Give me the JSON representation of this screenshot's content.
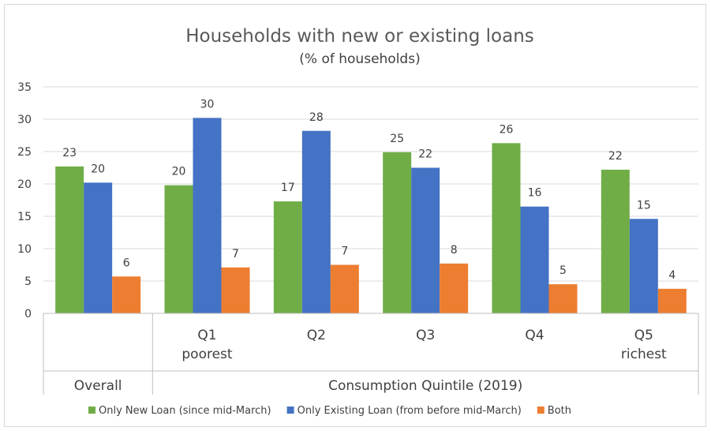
{
  "chart_data": {
    "type": "bar",
    "title": "Households with new or existing loans",
    "subtitle": "(% of households)",
    "ylim": [
      0,
      35
    ],
    "yticks": [
      0,
      5,
      10,
      15,
      20,
      25,
      30,
      35
    ],
    "grid": true,
    "legend_position": "bottom",
    "categories": [
      {
        "line1": "Overall",
        "line2": ""
      },
      {
        "line1": "Q1",
        "line2": "poorest"
      },
      {
        "line1": "Q2",
        "line2": ""
      },
      {
        "line1": "Q3",
        "line2": ""
      },
      {
        "line1": "Q4",
        "line2": ""
      },
      {
        "line1": "Q5",
        "line2": "richest"
      }
    ],
    "group_labels": [
      "Overall",
      "Consumption Quintile (2019)"
    ],
    "series": [
      {
        "name": "Only New Loan (since mid-March)",
        "color": "#70ad47",
        "values": [
          22.7,
          19.8,
          17.3,
          24.9,
          26.3,
          22.2
        ],
        "labels": [
          "23",
          "20",
          "17",
          "25",
          "26",
          "22"
        ]
      },
      {
        "name": "Only Existing Loan (from before mid-March)",
        "color": "#4472c4",
        "values": [
          20.2,
          30.2,
          28.2,
          22.5,
          16.5,
          14.6
        ],
        "labels": [
          "20",
          "30",
          "28",
          "22",
          "16",
          "15"
        ]
      },
      {
        "name": "Both",
        "color": "#ed7d31",
        "values": [
          5.7,
          7.1,
          7.5,
          7.7,
          4.5,
          3.8
        ],
        "labels": [
          "6",
          "7",
          "7",
          "8",
          "5",
          "4"
        ]
      }
    ]
  }
}
